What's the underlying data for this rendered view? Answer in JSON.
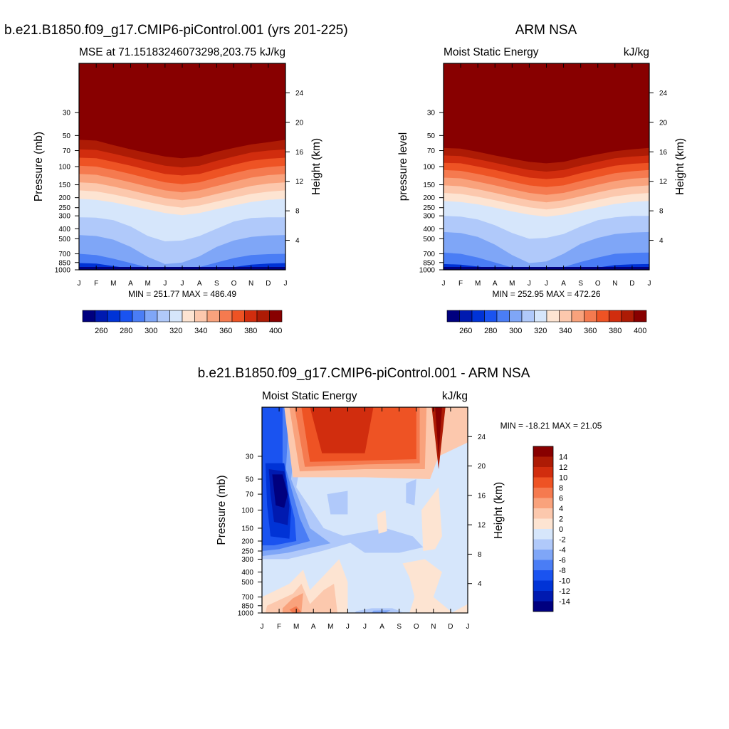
{
  "panels": [
    {
      "title": "b.e21.B1850.f09_g17.CMIP6-piControl.001 (yrs 201-225)",
      "subtitle_left": "MSE at 71.15183246073298,203.75",
      "subtitle_right": "kJ/kg",
      "ylabel_left": "Pressure (mb)",
      "ylabel_right": "Height (km)",
      "stats": "MIN = 251.77 MAX = 486.49"
    },
    {
      "title": "ARM NSA",
      "subtitle_left": "Moist Static Energy",
      "subtitle_right": "kJ/kg",
      "ylabel_left": "pressure level",
      "ylabel_right": "Height (km)",
      "stats": "MIN = 252.95 MAX = 472.26"
    },
    {
      "title": "b.e21.B1850.f09_g17.CMIP6-piControl.001 - ARM NSA",
      "subtitle_left": "Moist Static Energy",
      "subtitle_right": "kJ/kg",
      "ylabel_left": "Pressure (mb)",
      "ylabel_right": "Height (km)",
      "stats": "MIN = -18.21 MAX =  21.05"
    }
  ],
  "chart_data": [
    {
      "type": "heatmap",
      "title": "MSE at 71.15183246073298,203.75",
      "x_ticks": [
        "J",
        "F",
        "M",
        "A",
        "M",
        "J",
        "J",
        "A",
        "S",
        "O",
        "N",
        "D",
        "J"
      ],
      "y_ticks_pressure": [
        "30",
        "50",
        "70",
        "100",
        "150",
        "200",
        "250",
        "300",
        "400",
        "500",
        "700",
        "850",
        "1000"
      ],
      "y_ticks_height": [
        "24",
        "20",
        "16",
        "12",
        "8",
        "4"
      ],
      "color_levels": [
        "260",
        "280",
        "300",
        "320",
        "340",
        "360",
        "380",
        "400"
      ],
      "colors": [
        "#00007f",
        "#001ab0",
        "#0033d6",
        "#1a53f0",
        "#4a7df5",
        "#7fa6f7",
        "#b0c9fa",
        "#d6e6fb",
        "#fde4d2",
        "#fcc8ad",
        "#f9a27c",
        "#f57a4f",
        "#ee5324",
        "#d12d0e",
        "#ad1b05",
        "#880000"
      ],
      "min": 251.77,
      "max": 486.49,
      "boundary_levels_mb": [
        [
          55,
          56,
          62,
          68,
          74,
          80,
          83,
          80,
          72,
          66,
          61,
          58,
          55
        ],
        [
          68,
          69,
          75,
          82,
          90,
          98,
          102,
          98,
          88,
          80,
          73,
          70,
          68
        ],
        [
          82,
          83,
          90,
          98,
          108,
          118,
          122,
          118,
          106,
          96,
          88,
          84,
          82
        ],
        [
          98,
          100,
          108,
          118,
          130,
          142,
          148,
          142,
          128,
          116,
          106,
          101,
          98
        ],
        [
          118,
          120,
          130,
          142,
          156,
          170,
          178,
          170,
          154,
          140,
          128,
          121,
          118
        ],
        [
          142,
          145,
          156,
          170,
          186,
          202,
          212,
          202,
          184,
          168,
          154,
          146,
          142
        ],
        [
          170,
          174,
          186,
          202,
          220,
          238,
          250,
          238,
          218,
          200,
          184,
          175,
          170
        ],
        [
          205,
          210,
          222,
          240,
          260,
          282,
          296,
          282,
          258,
          238,
          220,
          210,
          205
        ],
        [
          310,
          312,
          330,
          380,
          470,
          530,
          520,
          470,
          400,
          340,
          315,
          310,
          310
        ],
        [
          460,
          470,
          510,
          600,
          750,
          880,
          850,
          740,
          600,
          520,
          480,
          465,
          460
        ],
        [
          700,
          720,
          780,
          860,
          950,
          990,
          985,
          940,
          850,
          770,
          720,
          705,
          700
        ],
        [
          860,
          870,
          920,
          970,
          1000,
          1000,
          1000,
          1000,
          990,
          940,
          890,
          870,
          860
        ],
        [
          960,
          965,
          985,
          1000,
          1000,
          1000,
          1000,
          1000,
          1000,
          1000,
          980,
          965,
          960
        ]
      ]
    },
    {
      "type": "heatmap",
      "title": "Moist Static Energy",
      "x_ticks": [
        "J",
        "F",
        "M",
        "A",
        "M",
        "J",
        "J",
        "A",
        "S",
        "O",
        "N",
        "D",
        "J"
      ],
      "y_ticks_pressure": [
        "30",
        "50",
        "70",
        "100",
        "150",
        "200",
        "250",
        "300",
        "400",
        "500",
        "700",
        "850",
        "1000"
      ],
      "y_ticks_height": [
        "24",
        "20",
        "16",
        "12",
        "8",
        "4"
      ],
      "color_levels": [
        "260",
        "280",
        "300",
        "320",
        "340",
        "360",
        "380",
        "400"
      ],
      "colors": [
        "#00007f",
        "#001ab0",
        "#0033d6",
        "#1a53f0",
        "#4a7df5",
        "#7fa6f7",
        "#b0c9fa",
        "#d6e6fb",
        "#fde4d2",
        "#fcc8ad",
        "#f9a27c",
        "#f57a4f",
        "#ee5324",
        "#d12d0e",
        "#ad1b05",
        "#880000"
      ],
      "min": 252.95,
      "max": 472.26,
      "boundary_levels_mb": [
        [
          66,
          67,
          72,
          78,
          84,
          90,
          93,
          90,
          82,
          76,
          71,
          68,
          66
        ],
        [
          78,
          79,
          85,
          92,
          100,
          108,
          112,
          108,
          98,
          90,
          83,
          80,
          78
        ],
        [
          92,
          93,
          100,
          108,
          118,
          128,
          132,
          128,
          116,
          106,
          98,
          94,
          92
        ],
        [
          108,
          110,
          118,
          128,
          140,
          152,
          158,
          152,
          138,
          126,
          116,
          111,
          108
        ],
        [
          128,
          130,
          140,
          152,
          166,
          180,
          188,
          180,
          164,
          150,
          138,
          131,
          128
        ],
        [
          152,
          155,
          166,
          180,
          196,
          212,
          222,
          212,
          194,
          178,
          164,
          156,
          152
        ],
        [
          180,
          184,
          196,
          212,
          230,
          248,
          260,
          248,
          228,
          210,
          194,
          185,
          180
        ],
        [
          215,
          220,
          232,
          250,
          272,
          292,
          306,
          292,
          268,
          248,
          230,
          220,
          215
        ],
        [
          300,
          305,
          325,
          370,
          440,
          500,
          490,
          450,
          380,
          330,
          310,
          300,
          300
        ],
        [
          430,
          440,
          480,
          570,
          720,
          860,
          830,
          700,
          560,
          490,
          450,
          435,
          430
        ],
        [
          680,
          700,
          760,
          850,
          950,
          995,
          990,
          940,
          840,
          760,
          700,
          685,
          680
        ],
        [
          880,
          890,
          930,
          975,
          1000,
          1000,
          1000,
          1000,
          990,
          950,
          900,
          885,
          880
        ],
        [
          970,
          975,
          990,
          1000,
          1000,
          1000,
          1000,
          1000,
          1000,
          1000,
          985,
          975,
          970
        ]
      ]
    },
    {
      "type": "heatmap",
      "title": "Moist Static Energy",
      "x_ticks": [
        "J",
        "F",
        "M",
        "A",
        "M",
        "J",
        "J",
        "A",
        "S",
        "O",
        "N",
        "D",
        "J"
      ],
      "y_ticks_pressure": [
        "30",
        "50",
        "70",
        "100",
        "150",
        "200",
        "250",
        "300",
        "400",
        "500",
        "700",
        "850",
        "1000"
      ],
      "y_ticks_height": [
        "24",
        "20",
        "16",
        "12",
        "8",
        "4"
      ],
      "color_levels": [
        "14",
        "12",
        "10",
        "8",
        "6",
        "4",
        "2",
        "0",
        "-2",
        "-4",
        "-6",
        "-8",
        "-10",
        "-12",
        "-14"
      ],
      "colors": [
        "#00007f",
        "#001ab0",
        "#0033d6",
        "#1a53f0",
        "#4a7df5",
        "#7fa6f7",
        "#b0c9fa",
        "#d6e6fb",
        "#fde4d2",
        "#fcc8ad",
        "#f9a27c",
        "#f57a4f",
        "#ee5324",
        "#d12d0e",
        "#ad1b05",
        "#880000"
      ],
      "min": -18.21,
      "max": 21.05,
      "blobs": [
        {
          "ci": 0,
          "m": 1.1,
          "p": 60
        },
        {
          "ci": 0,
          "m": 1.1,
          "p": 75
        },
        {
          "ci": 1,
          "m": 1.1,
          "p": 110
        },
        {
          "ci": 2,
          "m": 1.05,
          "p": 150
        },
        {
          "ci": 3,
          "m": 1.0,
          "p": 185
        },
        {
          "ci": 4,
          "m": 0.6,
          "p": 220
        },
        {
          "ci": 5,
          "m": 3.2,
          "p": 200
        },
        {
          "ci": 6,
          "m": 5.6,
          "p": 70
        },
        {
          "ci": 6,
          "m": 7.5,
          "p": 200
        },
        {
          "ci": 6,
          "m": 7.0,
          "p": 950
        },
        {
          "ci": 15,
          "m": 6.8,
          "p": 31
        },
        {
          "ci": 15,
          "m": 10.0,
          "p": 32
        },
        {
          "ci": 14,
          "m": 5.8,
          "p": 34
        },
        {
          "ci": 14,
          "m": 10.0,
          "p": 38
        },
        {
          "ci": 13,
          "m": 4.5,
          "p": 36
        },
        {
          "ci": 13,
          "m": 8.0,
          "p": 36
        },
        {
          "ci": 12,
          "m": 4.0,
          "p": 40
        },
        {
          "ci": 12,
          "m": 10.0,
          "p": 44
        },
        {
          "ci": 11,
          "m": 3.0,
          "p": 44
        },
        {
          "ci": 10,
          "m": 2.0,
          "p": 48
        },
        {
          "ci": 9,
          "m": 1.0,
          "p": 50
        },
        {
          "ci": 9,
          "m": 10.3,
          "p": 120
        },
        {
          "ci": 8,
          "m": 6.8,
          "p": 130
        },
        {
          "ci": 8,
          "m": 10.3,
          "p": 200
        },
        {
          "ci": 8,
          "m": 1.0,
          "p": 700
        },
        {
          "ci": 8,
          "m": 3.2,
          "p": 500
        },
        {
          "ci": 9,
          "m": 1.4,
          "p": 820
        },
        {
          "ci": 10,
          "m": 1.8,
          "p": 920
        },
        {
          "ci": 11,
          "m": 1.9,
          "p": 980
        },
        {
          "ci": 9,
          "m": 4.0,
          "p": 930
        },
        {
          "ci": 9,
          "m": 3.6,
          "p": 990
        },
        {
          "ci": 4,
          "m": 7.0,
          "p": 920
        }
      ]
    }
  ]
}
